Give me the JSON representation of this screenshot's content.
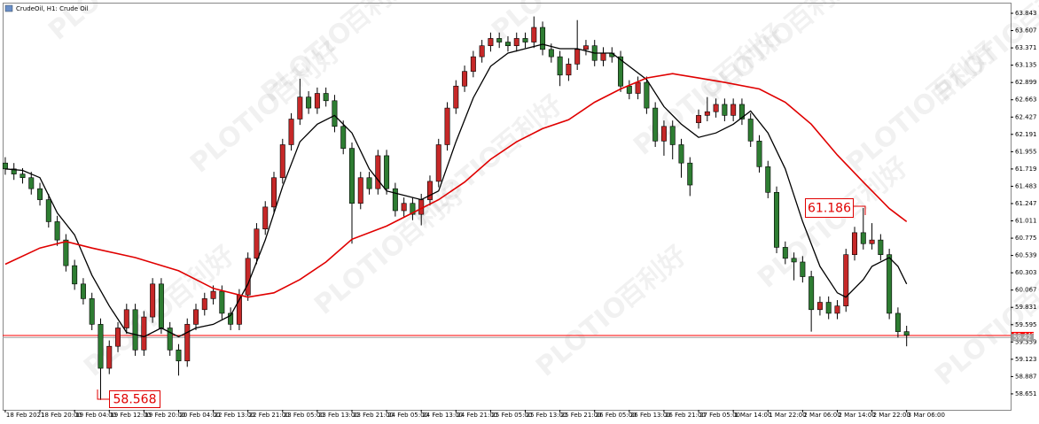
{
  "chart_data": {
    "type": "candlestick",
    "title": "CrudeOil, H1: Crude Oil",
    "up_color": "#c62828",
    "down_color": "#2e7d32",
    "wick_color": "#000000",
    "candles": [
      [
        61.8,
        61.88,
        61.64,
        61.72
      ],
      [
        61.72,
        61.8,
        61.57,
        61.65
      ],
      [
        61.65,
        61.73,
        61.52,
        61.6
      ],
      [
        61.6,
        61.68,
        61.37,
        61.45
      ],
      [
        61.45,
        61.53,
        61.22,
        61.3
      ],
      [
        61.3,
        61.38,
        60.92,
        61.0
      ],
      [
        61.0,
        61.08,
        60.67,
        60.75
      ],
      [
        60.75,
        60.83,
        60.32,
        60.4
      ],
      [
        60.4,
        60.48,
        60.07,
        60.15
      ],
      [
        60.15,
        60.23,
        59.87,
        59.95
      ],
      [
        59.95,
        60.03,
        59.52,
        59.6
      ],
      [
        59.6,
        59.68,
        58.568,
        59.0
      ],
      [
        59.0,
        59.38,
        58.92,
        59.3
      ],
      [
        59.3,
        59.63,
        59.22,
        59.55
      ],
      [
        59.55,
        59.88,
        59.47,
        59.8
      ],
      [
        59.8,
        59.88,
        59.17,
        59.25
      ],
      [
        59.25,
        59.78,
        59.17,
        59.7
      ],
      [
        59.7,
        60.23,
        59.62,
        60.15
      ],
      [
        60.15,
        60.23,
        59.47,
        59.55
      ],
      [
        59.55,
        59.63,
        59.17,
        59.25
      ],
      [
        59.25,
        59.33,
        58.9,
        59.1
      ],
      [
        59.1,
        59.68,
        59.02,
        59.6
      ],
      [
        59.6,
        59.88,
        59.52,
        59.8
      ],
      [
        59.8,
        60.03,
        59.72,
        59.95
      ],
      [
        59.95,
        60.13,
        59.87,
        60.05
      ],
      [
        60.05,
        60.13,
        59.67,
        59.75
      ],
      [
        59.75,
        59.83,
        59.52,
        59.6
      ],
      [
        59.6,
        60.08,
        59.52,
        60.0
      ],
      [
        60.0,
        60.58,
        59.92,
        60.5
      ],
      [
        60.5,
        60.98,
        60.42,
        60.9
      ],
      [
        60.9,
        61.28,
        60.82,
        61.2
      ],
      [
        61.2,
        61.68,
        61.12,
        61.6
      ],
      [
        61.6,
        62.13,
        61.52,
        62.05
      ],
      [
        62.05,
        62.48,
        61.97,
        62.4
      ],
      [
        62.4,
        62.95,
        62.32,
        62.7
      ],
      [
        62.7,
        62.78,
        62.47,
        62.55
      ],
      [
        62.55,
        62.83,
        62.47,
        62.75
      ],
      [
        62.75,
        62.83,
        62.57,
        62.65
      ],
      [
        62.65,
        62.73,
        62.22,
        62.3
      ],
      [
        62.3,
        62.38,
        61.92,
        62.0
      ],
      [
        62.0,
        62.08,
        60.7,
        61.25
      ],
      [
        61.25,
        61.68,
        61.17,
        61.6
      ],
      [
        61.6,
        61.68,
        61.37,
        61.45
      ],
      [
        61.45,
        61.98,
        61.37,
        61.9
      ],
      [
        61.9,
        61.98,
        61.37,
        61.45
      ],
      [
        61.45,
        61.53,
        61.07,
        61.15
      ],
      [
        61.15,
        61.33,
        61.07,
        61.25
      ],
      [
        61.25,
        61.33,
        61.02,
        61.1
      ],
      [
        61.1,
        61.38,
        60.95,
        61.3
      ],
      [
        61.3,
        61.63,
        61.22,
        61.55
      ],
      [
        61.55,
        62.13,
        61.47,
        62.05
      ],
      [
        62.05,
        62.63,
        61.97,
        62.55
      ],
      [
        62.55,
        62.93,
        62.47,
        62.85
      ],
      [
        62.85,
        63.13,
        62.77,
        63.05
      ],
      [
        63.05,
        63.33,
        62.97,
        63.25
      ],
      [
        63.25,
        63.48,
        63.17,
        63.4
      ],
      [
        63.4,
        63.58,
        63.32,
        63.5
      ],
      [
        63.5,
        63.58,
        63.37,
        63.45
      ],
      [
        63.45,
        63.53,
        63.32,
        63.4
      ],
      [
        63.4,
        63.58,
        63.32,
        63.5
      ],
      [
        63.5,
        63.58,
        63.37,
        63.45
      ],
      [
        63.45,
        63.8,
        63.37,
        63.65
      ],
      [
        63.65,
        63.73,
        63.27,
        63.35
      ],
      [
        63.35,
        63.43,
        63.17,
        63.25
      ],
      [
        63.25,
        63.33,
        62.85,
        63.0
      ],
      [
        63.0,
        63.23,
        62.92,
        63.15
      ],
      [
        63.15,
        63.75,
        63.07,
        63.35
      ],
      [
        63.35,
        63.48,
        63.27,
        63.4
      ],
      [
        63.4,
        63.48,
        63.12,
        63.2
      ],
      [
        63.2,
        63.38,
        63.12,
        63.3
      ],
      [
        63.3,
        63.38,
        63.17,
        63.25
      ],
      [
        63.25,
        63.33,
        62.77,
        62.85
      ],
      [
        62.85,
        62.93,
        62.67,
        62.75
      ],
      [
        62.75,
        62.98,
        62.67,
        62.9
      ],
      [
        62.9,
        62.98,
        62.47,
        62.55
      ],
      [
        62.55,
        62.63,
        62.02,
        62.1
      ],
      [
        62.1,
        62.38,
        61.9,
        62.3
      ],
      [
        62.3,
        62.38,
        61.85,
        62.05
      ],
      [
        62.05,
        62.13,
        61.6,
        61.8
      ],
      [
        61.8,
        61.88,
        61.35,
        61.5
      ],
      [
        62.35,
        62.53,
        62.27,
        62.45
      ],
      [
        62.45,
        62.7,
        62.37,
        62.5
      ],
      [
        62.5,
        62.68,
        62.42,
        62.6
      ],
      [
        62.6,
        62.68,
        62.37,
        62.45
      ],
      [
        62.45,
        62.68,
        62.37,
        62.6
      ],
      [
        62.6,
        62.68,
        62.32,
        62.4
      ],
      [
        62.4,
        62.48,
        62.02,
        62.1
      ],
      [
        62.1,
        62.18,
        61.67,
        61.75
      ],
      [
        61.75,
        61.83,
        61.32,
        61.4
      ],
      [
        61.4,
        61.48,
        60.57,
        60.65
      ],
      [
        60.65,
        60.73,
        60.42,
        60.5
      ],
      [
        60.5,
        60.58,
        60.2,
        60.45
      ],
      [
        60.45,
        60.53,
        60.17,
        60.25
      ],
      [
        60.25,
        60.33,
        59.5,
        59.8
      ],
      [
        59.8,
        59.98,
        59.72,
        59.9
      ],
      [
        59.9,
        59.98,
        59.67,
        59.75
      ],
      [
        59.75,
        59.93,
        59.67,
        59.85
      ],
      [
        59.85,
        60.63,
        59.77,
        60.55
      ],
      [
        60.55,
        60.93,
        60.47,
        60.85
      ],
      [
        60.85,
        61.186,
        60.62,
        60.7
      ],
      [
        60.7,
        60.98,
        60.62,
        60.75
      ],
      [
        60.75,
        60.83,
        60.47,
        60.55
      ],
      [
        60.55,
        60.63,
        59.67,
        59.75
      ],
      [
        59.75,
        59.83,
        59.42,
        59.5
      ],
      [
        59.5,
        59.58,
        59.3,
        59.45
      ]
    ],
    "lines": [
      {
        "color": "#000000",
        "x": [
          0,
          2,
          4,
          6,
          8,
          10,
          12,
          14,
          16,
          18,
          20,
          22,
          24,
          26,
          28,
          30,
          32,
          34,
          36,
          38,
          40,
          42,
          44,
          46,
          48,
          50,
          52,
          54,
          56,
          58,
          60,
          62,
          64,
          66,
          68,
          70,
          72,
          74,
          76,
          78,
          80,
          82,
          84,
          86,
          88,
          90,
          92,
          94,
          96,
          97,
          99,
          100,
          102,
          103,
          104
        ],
        "values": [
          61.72,
          61.7,
          61.6,
          61.12,
          60.82,
          60.27,
          59.85,
          59.49,
          59.43,
          59.55,
          59.43,
          59.55,
          59.6,
          59.72,
          60.15,
          60.75,
          61.48,
          62.09,
          62.33,
          62.45,
          62.21,
          61.72,
          61.42,
          61.36,
          61.3,
          61.42,
          62.09,
          62.69,
          63.12,
          63.3,
          63.36,
          63.42,
          63.36,
          63.36,
          63.3,
          63.3,
          63.12,
          62.94,
          62.57,
          62.33,
          62.15,
          62.21,
          62.33,
          62.51,
          62.21,
          61.72,
          61.0,
          60.39,
          60.03,
          59.97,
          60.21,
          60.39,
          60.51,
          60.39,
          60.15
        ]
      },
      {
        "color": "#e00000",
        "x": [
          0,
          4,
          7,
          10,
          15,
          20,
          24,
          28,
          31,
          34,
          37,
          40,
          44,
          47,
          50,
          53,
          56,
          59,
          62,
          65,
          68,
          71,
          74,
          77,
          80,
          83,
          87,
          90,
          93,
          96,
          99,
          102,
          104
        ],
        "values": [
          60.42,
          60.64,
          60.73,
          60.64,
          60.51,
          60.33,
          60.09,
          59.97,
          60.03,
          60.21,
          60.45,
          60.76,
          60.94,
          61.12,
          61.3,
          61.54,
          61.85,
          62.09,
          62.27,
          62.39,
          62.63,
          62.81,
          62.96,
          63.02,
          62.96,
          62.9,
          62.81,
          62.63,
          62.33,
          61.91,
          61.54,
          61.18,
          61.0
        ]
      }
    ],
    "price_lines": [
      {
        "value": 59.448,
        "color": "#ff0000"
      },
      {
        "value": 59.42,
        "color": "#a0a0a0"
      }
    ],
    "annotations": [
      "61.186",
      "58.568"
    ],
    "watermark": {
      "brand": "PLOTIO",
      "cn": "百利好"
    },
    "xlim": [
      -0.3,
      116
    ],
    "ylim": [
      58.433,
      63.988
    ],
    "xticks": [
      {
        "value": 0,
        "label": "18 Feb 2021"
      },
      {
        "value": 4,
        "label": "18 Feb 20:00"
      },
      {
        "value": 8,
        "label": "19 Feb 04:00"
      },
      {
        "value": 12,
        "label": "19 Feb 12:00"
      },
      {
        "value": 16,
        "label": "19 Feb 20:00"
      },
      {
        "value": 20,
        "label": "20 Feb 04:00"
      },
      {
        "value": 24,
        "label": "22 Feb 13:00"
      },
      {
        "value": 28,
        "label": "22 Feb 21:00"
      },
      {
        "value": 32,
        "label": "23 Feb 05:00"
      },
      {
        "value": 36,
        "label": "23 Feb 13:00"
      },
      {
        "value": 40,
        "label": "23 Feb 21:00"
      },
      {
        "value": 44,
        "label": "24 Feb 05:00"
      },
      {
        "value": 48,
        "label": "24 Feb 13:00"
      },
      {
        "value": 52,
        "label": "24 Feb 21:00"
      },
      {
        "value": 56,
        "label": "25 Feb 05:00"
      },
      {
        "value": 60,
        "label": "25 Feb 13:00"
      },
      {
        "value": 64,
        "label": "25 Feb 21:00"
      },
      {
        "value": 68,
        "label": "26 Feb 05:00"
      },
      {
        "value": 72,
        "label": "26 Feb 13:00"
      },
      {
        "value": 76,
        "label": "26 Feb 21:00"
      },
      {
        "value": 80,
        "label": "27 Feb 05:00"
      },
      {
        "value": 84,
        "label": "1 Mar 14:00"
      },
      {
        "value": 88,
        "label": "1 Mar 22:00"
      },
      {
        "value": 92,
        "label": "2 Mar 06:00"
      },
      {
        "value": 96,
        "label": "2 Mar 14:00"
      },
      {
        "value": 100,
        "label": "2 Mar 22:00"
      },
      {
        "value": 104,
        "label": "3 Mar 06:00"
      }
    ],
    "yticks": [
      63.843,
      63.607,
      63.371,
      63.135,
      62.899,
      62.663,
      62.427,
      62.191,
      61.955,
      61.719,
      61.483,
      61.247,
      61.011,
      60.775,
      60.539,
      60.303,
      60.067,
      59.831,
      59.595,
      59.359,
      59.123,
      58.887,
      58.651
    ]
  }
}
